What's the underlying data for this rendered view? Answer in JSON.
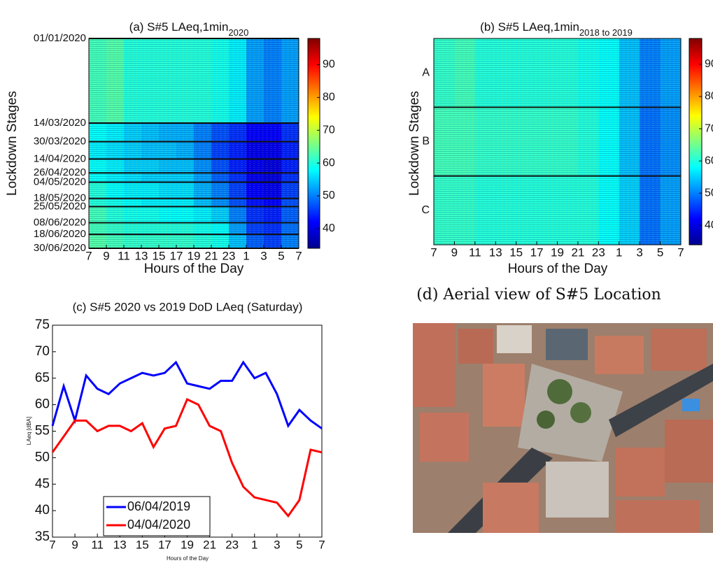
{
  "chart_data": [
    {
      "type": "heatmap",
      "title": "(a) S#5 LAeq,1min",
      "title_subscript": "2020",
      "xlabel": "Hours of the Day",
      "ylabel": "Lockdown Stages",
      "xlim": [
        7,
        31
      ],
      "xticks": [
        7,
        9,
        11,
        13,
        15,
        17,
        19,
        21,
        23,
        {
          "value": 25,
          "label": "1"
        },
        {
          "value": 27,
          "label": "3"
        },
        {
          "value": 29,
          "label": "5"
        },
        {
          "value": 31,
          "label": "7"
        }
      ],
      "xbins": [
        7,
        9,
        11,
        13,
        15,
        17,
        19,
        21,
        23,
        25,
        27,
        29,
        31
      ],
      "ylim": [
        1,
        182
      ],
      "yticks": [
        {
          "value": 1,
          "label": "01/01/2020"
        },
        {
          "value": 74,
          "label": "14/03/2020"
        },
        {
          "value": 90,
          "label": "30/03/2020"
        },
        {
          "value": 105,
          "label": "14/04/2020"
        },
        {
          "value": 117,
          "label": "26/04/2020"
        },
        {
          "value": 125,
          "label": "04/05/2020"
        },
        {
          "value": 139,
          "label": "18/05/2020"
        },
        {
          "value": 146,
          "label": "25/05/2020"
        },
        {
          "value": 160,
          "label": "08/06/2020"
        },
        {
          "value": 170,
          "label": "18/06/2020"
        },
        {
          "value": 182,
          "label": "30/06/2020"
        }
      ],
      "z": [
        [
          62,
          63,
          60,
          60,
          60,
          60,
          60,
          59,
          57,
          52,
          50,
          52
        ],
        [
          58,
          57,
          55,
          54,
          53,
          53,
          50,
          47,
          45,
          42,
          42,
          45
        ],
        [
          57,
          56,
          55,
          54,
          54,
          53,
          50,
          46,
          44,
          41,
          41,
          44
        ],
        [
          58,
          57,
          55,
          55,
          54,
          54,
          51,
          47,
          44,
          41,
          40,
          44
        ],
        [
          58,
          57,
          56,
          55,
          55,
          55,
          52,
          48,
          45,
          41,
          40,
          45
        ],
        [
          60,
          58,
          57,
          57,
          56,
          56,
          53,
          50,
          46,
          42,
          41,
          46
        ],
        [
          60,
          59,
          58,
          57,
          57,
          57,
          54,
          51,
          47,
          43,
          42,
          47
        ],
        [
          62,
          60,
          59,
          59,
          58,
          58,
          57,
          55,
          50,
          45,
          44,
          48
        ],
        [
          62,
          61,
          60,
          60,
          60,
          60,
          59,
          58,
          52,
          46,
          45,
          49
        ],
        [
          63,
          62,
          61,
          61,
          61,
          61,
          60,
          59,
          54,
          48,
          46,
          50
        ]
      ],
      "clim": [
        34,
        98
      ],
      "cticks": [
        40,
        50,
        60,
        70,
        80,
        90
      ],
      "colormap": "jet",
      "grid": true
    },
    {
      "type": "heatmap",
      "title": "(b) S#5 LAeq,1min",
      "title_subscript": "2018 to 2019",
      "xlabel": "Hours of the Day",
      "ylabel": "Lockdown Stages",
      "xlim": [
        7,
        31
      ],
      "xticks": [
        7,
        9,
        11,
        13,
        15,
        17,
        19,
        21,
        23,
        {
          "value": 25,
          "label": "1"
        },
        {
          "value": 27,
          "label": "3"
        },
        {
          "value": 29,
          "label": "5"
        },
        {
          "value": 31,
          "label": "7"
        }
      ],
      "xbins": [
        7,
        9,
        11,
        13,
        15,
        17,
        19,
        21,
        23,
        25,
        27,
        29,
        31
      ],
      "categories": [
        "A",
        "B",
        "C"
      ],
      "z": [
        [
          61,
          62,
          60,
          60,
          60,
          60,
          60,
          59,
          58,
          54,
          50,
          52
        ],
        [
          62,
          62,
          61,
          61,
          61,
          61,
          61,
          60,
          58,
          54,
          49,
          51
        ],
        [
          61,
          61,
          60,
          60,
          60,
          60,
          60,
          60,
          58,
          55,
          49,
          52
        ]
      ],
      "clim": [
        34,
        98
      ],
      "cticks": [
        40,
        50,
        60,
        70,
        80,
        90
      ],
      "colormap": "jet",
      "grid": true
    },
    {
      "type": "line",
      "title": "(c) S#5 2020 vs 2019 DoD LAeq (Saturday)",
      "xlabel": "Hours of the Day",
      "ylabel": "LAeq [dBA]",
      "x": [
        7,
        8,
        9,
        10,
        11,
        12,
        13,
        14,
        15,
        16,
        17,
        18,
        19,
        20,
        21,
        22,
        23,
        24,
        25,
        26,
        27,
        28,
        29,
        30,
        31
      ],
      "series": [
        {
          "name": "06/04/2019",
          "color": "#0000ff",
          "values": [
            56,
            63.5,
            57,
            65.5,
            63,
            62,
            64,
            65,
            66,
            65.5,
            66,
            68,
            64,
            63.5,
            63,
            64.5,
            64.5,
            68,
            65,
            66,
            62,
            56,
            59,
            57,
            55.5
          ]
        },
        {
          "name": "04/04/2020",
          "color": "#ff0000",
          "values": [
            51,
            54,
            57,
            57,
            55,
            56,
            56,
            55,
            56.5,
            52,
            55.5,
            56,
            61,
            60,
            56,
            55,
            49,
            44.5,
            42.5,
            42,
            41.5,
            39,
            42,
            51.5,
            51
          ]
        }
      ],
      "xlim": [
        7,
        31
      ],
      "xticks": [
        7,
        9,
        11,
        13,
        15,
        17,
        19,
        21,
        23,
        {
          "value": 25,
          "label": "1"
        },
        {
          "value": 27,
          "label": "3"
        },
        {
          "value": 29,
          "label": "5"
        },
        {
          "value": 31,
          "label": "7"
        }
      ],
      "ylim": [
        35,
        75
      ],
      "yticks": [
        35,
        40,
        45,
        50,
        55,
        60,
        65,
        70,
        75
      ],
      "legend": "lower left"
    }
  ],
  "figure_d": {
    "title": "(d) Aerial view of S#5 Location"
  }
}
